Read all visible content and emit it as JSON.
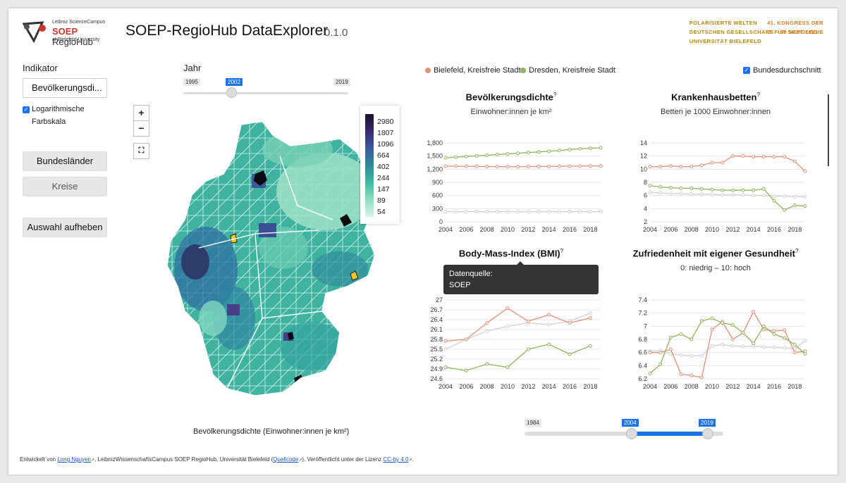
{
  "header": {
    "logo_line1": "Leibniz ScienceCampus",
    "logo_brand": "SOEP",
    "logo_brand2": "RegioHub",
    "logo_line3": "at Bielefeld University",
    "title": "SOEP-RegioHub DataExplorer",
    "version": "0.1.0",
    "congress_left": [
      "POLARISIERTE WELTEN",
      "DEUTSCHEN GESELLSCHAFT FÜR SOZIOLOGIE",
      "UNIVERSITÄT BIELEFELD"
    ],
    "congress_right": [
      "41. KONGRESS DER",
      "",
      "26 – 30 SEPT 2022"
    ]
  },
  "sidebar": {
    "indikator_label": "Indikator",
    "indikator_value": "Bevölkerungsdi...",
    "log_scale_label_1": "Logarithmische",
    "log_scale_label_2": "Farbskala",
    "btn_bundeslaender": "Bundesländer",
    "btn_kreise": "Kreise",
    "btn_clear": "Auswahl aufheben"
  },
  "year_slider": {
    "label": "Jahr",
    "min": "1995",
    "max": "2019",
    "value": "2002",
    "fraction": 0.29
  },
  "map": {
    "zoom_in": "+",
    "zoom_out": "−",
    "fullscreen": "⛶",
    "caption": "Bevölkerungsdichte (Einwohner:innen je km²)",
    "legend": [
      "2980",
      "1807",
      "1096",
      "664",
      "402",
      "244",
      "147",
      "89",
      "54"
    ]
  },
  "selection": {
    "region1": "Bielefeld, Kreisfreie Stadt",
    "region2": "Dresden, Kreisfreie Stadt",
    "national_avg": "Bundesdurchschnitt",
    "color1": "#e0907a",
    "color2": "#8fb35a",
    "color_avg": "#cfcfcf"
  },
  "charts": [
    {
      "title": "Bevölkerungsdichte",
      "q": "?",
      "subtitle": "Einwohner:innen je km²",
      "y_ticks": [
        "1,800",
        "1,500",
        "1,200",
        "900",
        "600",
        "300",
        "0"
      ],
      "x_ticks": [
        "2004",
        "2006",
        "2008",
        "2010",
        "2012",
        "2014",
        "2016",
        "2018"
      ]
    },
    {
      "title": "Krankenhausbetten",
      "q": "?",
      "subtitle": "Betten je 1000 Einwohner:innen",
      "y_ticks": [
        "14",
        "12",
        "10",
        "8",
        "6",
        "4",
        "2"
      ],
      "x_ticks": [
        "2004",
        "2006",
        "2008",
        "2010",
        "2012",
        "2014",
        "2016",
        "2018"
      ]
    },
    {
      "title": "Body-Mass-Index (BMI)",
      "q": "?",
      "subtitle": "",
      "y_ticks": [
        "27",
        "26.7",
        "26.4",
        "26.1",
        "25.8",
        "25.5",
        "25.2",
        "24.9",
        "24.6"
      ],
      "x_ticks": [
        "2004",
        "2006",
        "2008",
        "2010",
        "2012",
        "2014",
        "2016",
        "2018"
      ]
    },
    {
      "title": "Zufriedenheit mit eigener Gesundheit",
      "q": "?",
      "subtitle": "0: niedrig – 10: hoch",
      "y_ticks": [
        "7.4",
        "7.2",
        "7",
        "6.8",
        "6.6",
        "6.4",
        "6.2"
      ],
      "x_ticks": [
        "2004",
        "2006",
        "2008",
        "2010",
        "2012",
        "2014",
        "2016",
        "2018"
      ]
    }
  ],
  "tooltip": {
    "line1": "Datenquelle:",
    "line2": "SOEP"
  },
  "range_slider": {
    "min": "1984",
    "from": "2004",
    "to": "2019"
  },
  "chart_data": [
    {
      "type": "line",
      "title": "Bevölkerungsdichte",
      "x": [
        2004,
        2005,
        2006,
        2007,
        2008,
        2009,
        2010,
        2011,
        2012,
        2013,
        2014,
        2015,
        2016,
        2017,
        2018,
        2019
      ],
      "ylim": [
        0,
        1800
      ],
      "series": [
        {
          "name": "Bielefeld, Kreisfreie Stadt",
          "values": [
            1270,
            1268,
            1266,
            1264,
            1262,
            1260,
            1258,
            1258,
            1260,
            1262,
            1264,
            1266,
            1270,
            1272,
            1274,
            1275
          ]
        },
        {
          "name": "Dresden, Kreisfreie Stadt",
          "values": [
            1460,
            1475,
            1490,
            1505,
            1520,
            1535,
            1550,
            1565,
            1580,
            1595,
            1610,
            1625,
            1650,
            1665,
            1680,
            1690
          ]
        },
        {
          "name": "Bundesdurchschnitt",
          "values": [
            231,
            231,
            231,
            230,
            230,
            230,
            229,
            229,
            229,
            229,
            230,
            231,
            232,
            232,
            232,
            233
          ]
        }
      ]
    },
    {
      "type": "line",
      "title": "Krankenhausbetten",
      "x": [
        2004,
        2005,
        2006,
        2007,
        2008,
        2009,
        2010,
        2011,
        2012,
        2013,
        2014,
        2015,
        2016,
        2017,
        2018,
        2019
      ],
      "ylim": [
        2,
        14
      ],
      "series": [
        {
          "name": "Bielefeld, Kreisfreie Stadt",
          "values": [
            10.4,
            10.4,
            10.5,
            10.4,
            10.4,
            10.6,
            11.0,
            11.0,
            12.0,
            12.0,
            11.9,
            11.9,
            11.9,
            11.9,
            11.2,
            9.7
          ]
        },
        {
          "name": "Dresden, Kreisfreie Stadt",
          "values": [
            7.5,
            7.3,
            7.2,
            7.1,
            7.1,
            7.0,
            6.9,
            6.8,
            6.8,
            6.8,
            6.8,
            7.0,
            5.2,
            3.8,
            4.5,
            4.4
          ]
        },
        {
          "name": "Bundesdurchschnitt",
          "values": [
            6.5,
            6.4,
            6.3,
            6.3,
            6.2,
            6.2,
            6.2,
            6.1,
            6.1,
            6.1,
            6.0,
            6.0,
            5.9,
            5.9,
            5.8,
            5.8
          ]
        }
      ]
    },
    {
      "type": "line",
      "title": "Body-Mass-Index (BMI)",
      "x": [
        2004,
        2006,
        2008,
        2010,
        2012,
        2014,
        2016,
        2018
      ],
      "ylim": [
        24.6,
        27
      ],
      "series": [
        {
          "name": "Bielefeld, Kreisfreie Stadt",
          "values": [
            25.75,
            25.8,
            26.3,
            26.75,
            26.35,
            26.55,
            26.3,
            26.45
          ]
        },
        {
          "name": "Dresden, Kreisfreie Stadt",
          "values": [
            24.95,
            24.85,
            25.05,
            24.95,
            25.5,
            25.65,
            25.35,
            25.6
          ]
        },
        {
          "name": "Bundesdurchschnitt",
          "values": [
            25.5,
            25.8,
            26.05,
            26.2,
            26.3,
            26.25,
            26.35,
            26.6
          ]
        }
      ]
    },
    {
      "type": "line",
      "title": "Zufriedenheit mit eigener Gesundheit",
      "x": [
        2004,
        2005,
        2006,
        2007,
        2008,
        2009,
        2010,
        2011,
        2012,
        2013,
        2014,
        2015,
        2016,
        2017,
        2018,
        2019
      ],
      "ylim": [
        6.2,
        7.4
      ],
      "series": [
        {
          "name": "Bielefeld, Kreisfreie Stadt",
          "values": [
            6.6,
            6.6,
            6.65,
            6.27,
            6.25,
            6.22,
            6.95,
            7.07,
            6.8,
            6.9,
            7.22,
            6.95,
            6.93,
            6.94,
            6.6,
            6.62
          ]
        },
        {
          "name": "Dresden, Kreisfreie Stadt",
          "values": [
            6.28,
            6.42,
            6.83,
            6.88,
            6.8,
            7.08,
            7.12,
            7.05,
            7.02,
            6.9,
            6.74,
            7.0,
            6.88,
            6.82,
            6.72,
            6.58
          ]
        },
        {
          "name": "Bundesdurchschnitt",
          "values": [
            6.62,
            6.63,
            6.58,
            6.56,
            6.55,
            6.55,
            6.7,
            6.72,
            6.7,
            6.69,
            6.7,
            6.68,
            6.68,
            6.67,
            6.66,
            6.78
          ]
        }
      ]
    }
  ],
  "footer": {
    "t1": "Entwickelt von ",
    "author": "Long Nguyen",
    "t2": ", LeibnizWissenschaftsCampus SOEP RegioHub, Universität Bielefeld (",
    "source": "Quellcode",
    "t3": "). Veröffentlicht unter der Lizenz ",
    "license": "CC-by 4.0",
    "t4": "."
  }
}
